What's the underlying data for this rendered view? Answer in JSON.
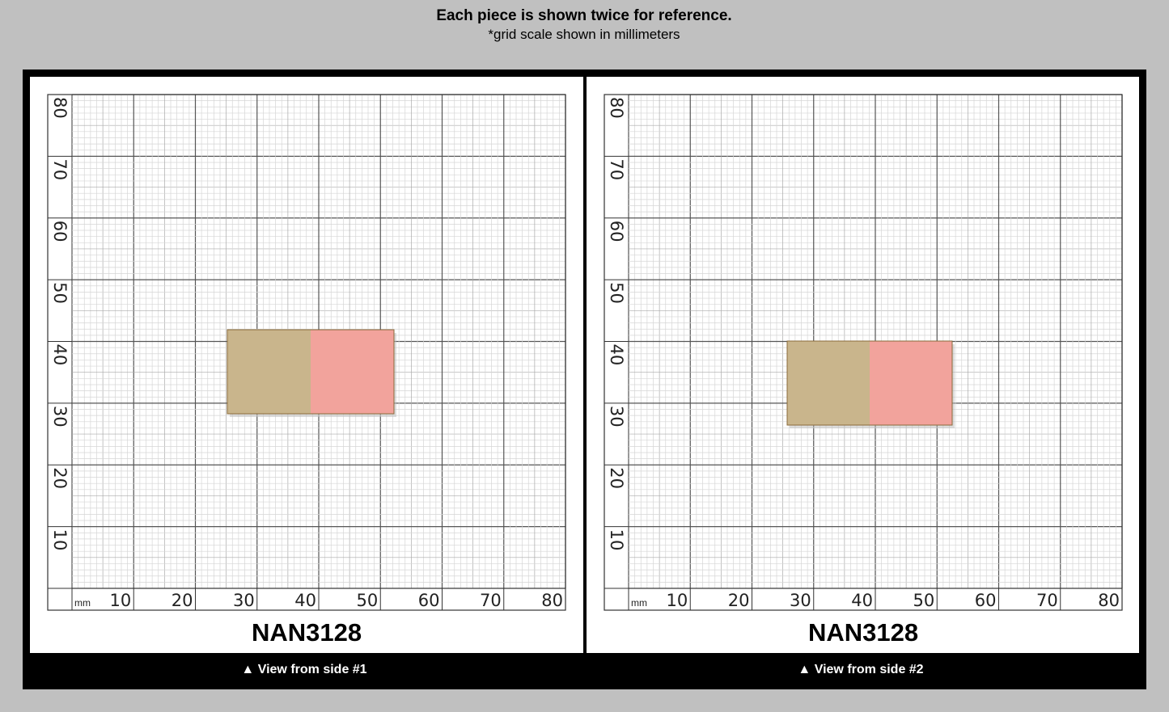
{
  "header": {
    "title": "Each piece is shown twice for reference.",
    "subtitle": "*grid scale shown in millimeters"
  },
  "panels": [
    {
      "label": "NAN3128",
      "caption": "▲ View from side #1",
      "grid": {
        "unit": "mm",
        "x_labels": [
          "10",
          "20",
          "30",
          "40",
          "50",
          "60",
          "70",
          "80"
        ],
        "y_labels": [
          "10",
          "20",
          "30",
          "40",
          "50",
          "60",
          "70",
          "80"
        ]
      }
    },
    {
      "label": "NAN3128",
      "caption": "▲ View from side #2",
      "grid": {
        "unit": "mm",
        "x_labels": [
          "10",
          "20",
          "30",
          "40",
          "50",
          "60",
          "70",
          "80"
        ],
        "y_labels": [
          "10",
          "20",
          "30",
          "40",
          "50",
          "60",
          "70",
          "80"
        ]
      }
    }
  ]
}
